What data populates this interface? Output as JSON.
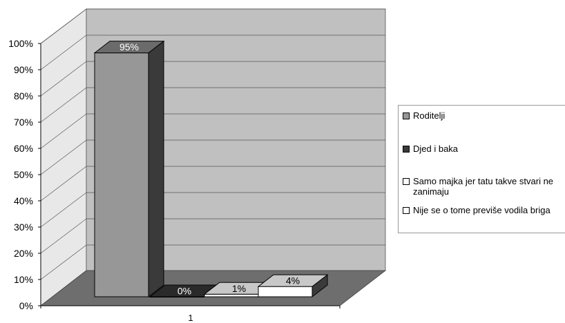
{
  "chart_data": {
    "type": "bar",
    "categories": [
      "1"
    ],
    "series": [
      {
        "name": "Roditelji",
        "values": [
          95
        ],
        "label": "95%",
        "color": "#979797",
        "top_color": "#6b6b6b",
        "side_color": "#3a3a3a"
      },
      {
        "name": "Djed i baka",
        "values": [
          0
        ],
        "label": "0%",
        "color": "#3a3a3a",
        "top_color": "#2a2a2a",
        "side_color": "#1e1e1e"
      },
      {
        "name": "Samo majka jer tatu takve stvari ne zanimaju",
        "values": [
          1
        ],
        "label": "1%",
        "color": "#ffffff",
        "top_color": "#c8c8c8",
        "side_color": "#3a3a3a"
      },
      {
        "name": "Nije se o tome previše vodila briga",
        "values": [
          4
        ],
        "label": "4%",
        "color": "#ffffff",
        "top_color": "#c8c8c8",
        "side_color": "#3a3a3a"
      }
    ],
    "yticks": [
      "0%",
      "10%",
      "20%",
      "30%",
      "40%",
      "50%",
      "60%",
      "70%",
      "80%",
      "90%",
      "100%"
    ],
    "ylim": [
      0,
      100
    ],
    "grid": true,
    "legend_position": "right",
    "colors": {
      "wall": "#c0c0c0",
      "floor": "#6e6e6e",
      "side_wall": "#e8e8e8"
    }
  }
}
